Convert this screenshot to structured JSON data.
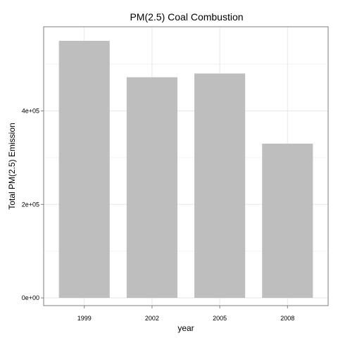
{
  "chart_data": {
    "type": "bar",
    "title": "PM(2.5) Coal Combustion",
    "xlabel": "year",
    "ylabel": "Total PM(2.5) Emission",
    "categories": [
      "1999",
      "2002",
      "2005",
      "2008"
    ],
    "values": [
      550000,
      472000,
      480000,
      330000
    ],
    "ylim": [
      -16500,
      580000
    ],
    "yticks": [
      {
        "value": 0,
        "label": "0e+00"
      },
      {
        "value": 200000,
        "label": "2e+05"
      },
      {
        "value": 400000,
        "label": "4e+05"
      }
    ],
    "grid": true,
    "legend": "none",
    "colors": {
      "bar": "#bebebe",
      "grid_major": "#e6e6e6",
      "grid_minor": "#f3f3f3",
      "panel_border": "#7f7f7f",
      "background": "#ffffff"
    }
  }
}
